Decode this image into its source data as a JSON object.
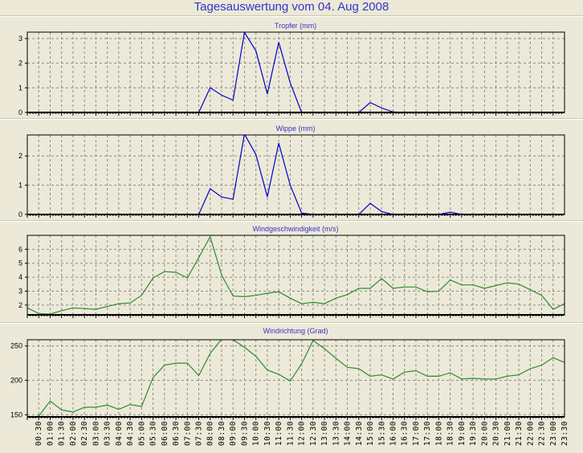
{
  "title": "Tagesauswertung vom 04. Aug 2008",
  "colors": {
    "title": "#3333CC",
    "rain_line": "#0000CC",
    "wind_line": "#2E8B2E",
    "background": "#ECE9D8",
    "grid": "#8A8A8A"
  },
  "x_tick_labels": [
    "00:30",
    "01:00",
    "01:30",
    "02:00",
    "02:30",
    "03:00",
    "03:30",
    "04:00",
    "04:30",
    "05:00",
    "05:30",
    "06:00",
    "06:30",
    "07:00",
    "07:30",
    "08:00",
    "08:30",
    "09:00",
    "09:30",
    "10:00",
    "10:30",
    "11:00",
    "11:30",
    "12:00",
    "12:30",
    "13:00",
    "13:30",
    "14:00",
    "14:30",
    "15:00",
    "15:30",
    "16:00",
    "16:30",
    "17:00",
    "17:30",
    "18:00",
    "18:30",
    "19:00",
    "19:30",
    "20:00",
    "20:30",
    "21:00",
    "21:30",
    "22:00",
    "22:30",
    "23:00",
    "23:30"
  ],
  "chart_data": [
    {
      "type": "line",
      "title": "Tropfer (mm)",
      "x_start": "00:00",
      "x_step_minutes": 30,
      "ylim": [
        0,
        3.26
      ],
      "yticks": [
        "0",
        "1",
        "2",
        "3"
      ],
      "color": "#0000CC",
      "values": [
        0,
        0,
        0,
        0,
        0,
        0,
        0,
        0,
        0,
        0,
        0,
        0,
        0,
        0,
        0,
        0,
        1.0,
        0.7,
        0.5,
        3.25,
        2.5,
        0.75,
        2.85,
        1.2,
        0,
        0,
        0,
        0,
        0,
        0,
        0.4,
        0.18,
        0.02,
        0,
        0,
        0,
        0,
        0,
        0,
        0,
        0,
        0,
        0,
        0,
        0,
        0,
        0,
        0
      ]
    },
    {
      "type": "line",
      "title": "Wippe (mm)",
      "x_start": "00:00",
      "x_step_minutes": 30,
      "ylim": [
        0,
        2.72
      ],
      "yticks": [
        "0",
        "1",
        "2"
      ],
      "color": "#0000CC",
      "values": [
        0,
        0,
        0,
        0,
        0,
        0,
        0,
        0,
        0,
        0,
        0,
        0,
        0,
        0,
        0,
        0,
        0.88,
        0.6,
        0.52,
        2.75,
        2.05,
        0.6,
        2.44,
        1.0,
        0.05,
        0,
        0,
        0,
        0,
        0,
        0.38,
        0.1,
        0,
        0,
        0,
        0,
        0,
        0.08,
        0,
        0,
        0,
        0,
        0,
        0,
        0,
        0,
        0,
        0
      ]
    },
    {
      "type": "line",
      "title": "Windgeschwindigkeit (m/s)",
      "x_start": "00:00",
      "x_step_minutes": 30,
      "ylim": [
        1.3,
        7.0
      ],
      "yticks": [
        "2",
        "3",
        "4",
        "5",
        "6"
      ],
      "color": "#2E8B2E",
      "values": [
        1.8,
        1.4,
        1.35,
        1.6,
        1.8,
        1.75,
        1.7,
        1.9,
        2.1,
        2.15,
        2.7,
        3.95,
        4.4,
        4.35,
        3.95,
        5.4,
        6.9,
        4.15,
        2.65,
        2.6,
        2.7,
        2.85,
        2.95,
        2.5,
        2.1,
        2.2,
        2.1,
        2.5,
        2.75,
        3.2,
        3.2,
        3.9,
        3.2,
        3.3,
        3.3,
        2.95,
        3.0,
        3.8,
        3.45,
        3.45,
        3.2,
        3.4,
        3.6,
        3.5,
        3.1,
        2.7,
        1.7,
        2.1
      ]
    },
    {
      "type": "line",
      "title": "Windrichtung (Grad)",
      "x_start": "00:00",
      "x_step_minutes": 30,
      "ylim": [
        147,
        259
      ],
      "yticks": [
        "150",
        "200",
        "250"
      ],
      "color": "#2E8B2E",
      "values": [
        145,
        148,
        170,
        157,
        154,
        161,
        161,
        164,
        158,
        165,
        162,
        204,
        222,
        225,
        225,
        207,
        239,
        260,
        259,
        248,
        235,
        215,
        209,
        199,
        224,
        258,
        246,
        232,
        219,
        217,
        206,
        208,
        202,
        212,
        214,
        206,
        206,
        211,
        202,
        203,
        202,
        202,
        206,
        208,
        217,
        222,
        233,
        226
      ]
    }
  ]
}
